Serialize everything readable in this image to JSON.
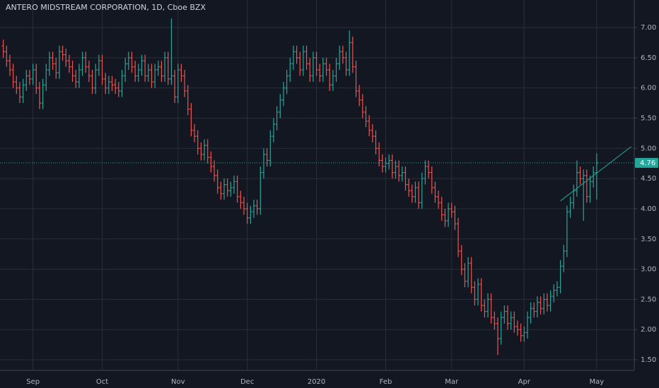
{
  "chart_data": {
    "type": "ohlc",
    "title": "ANTERO MIDSTREAM CORPORATION, 1D, Cboe BZX",
    "up_color": "#26a69a",
    "down_color": "#ef5350",
    "grid": true,
    "xlim": [
      -1,
      191.4
    ],
    "ylim": [
      1.325,
      7.456
    ],
    "yticks": [
      {
        "value": 1.5,
        "label": "1.50"
      },
      {
        "value": 2,
        "label": "2.00"
      },
      {
        "value": 2.5,
        "label": "2.50"
      },
      {
        "value": 3,
        "label": "3.00"
      },
      {
        "value": 3.5,
        "label": "3.50"
      },
      {
        "value": 4,
        "label": "4.00"
      },
      {
        "value": 4.5,
        "label": "4.50"
      },
      {
        "value": 5,
        "label": "5.00"
      },
      {
        "value": 5.5,
        "label": "5.50"
      },
      {
        "value": 6,
        "label": "6.00"
      },
      {
        "value": 6.5,
        "label": "6.50"
      },
      {
        "value": 7,
        "label": "7.00"
      }
    ],
    "xticks": [
      {
        "value": 9,
        "label": "Sep"
      },
      {
        "value": 30,
        "label": "Oct"
      },
      {
        "value": 53,
        "label": "Nov"
      },
      {
        "value": 74,
        "label": "Dec"
      },
      {
        "value": 95,
        "label": "2020"
      },
      {
        "value": 116,
        "label": "Feb"
      },
      {
        "value": 136,
        "label": "Mar"
      },
      {
        "value": 158,
        "label": "Apr"
      },
      {
        "value": 180,
        "label": "May"
      }
    ],
    "last_price": 4.76,
    "trendline": {
      "x": [
        169,
        190.5
      ],
      "y": [
        4.13,
        5.03
      ]
    },
    "ohlc": [
      [
        6.7,
        6.8,
        6.5,
        6.6
      ],
      [
        6.6,
        6.7,
        6.35,
        6.45
      ],
      [
        6.45,
        6.55,
        6.2,
        6.3
      ],
      [
        6.3,
        6.4,
        6.0,
        6.1
      ],
      [
        6.1,
        6.2,
        5.9,
        6.0
      ],
      [
        6.0,
        6.1,
        5.75,
        5.85
      ],
      [
        5.85,
        6.15,
        5.75,
        6.05
      ],
      [
        6.05,
        6.3,
        5.95,
        6.2
      ],
      [
        6.2,
        6.3,
        6.05,
        6.15
      ],
      [
        6.15,
        6.4,
        6.05,
        6.3
      ],
      [
        6.3,
        6.4,
        5.9,
        6.0
      ],
      [
        6.0,
        6.1,
        5.65,
        5.75
      ],
      [
        5.75,
        6.15,
        5.65,
        6.05
      ],
      [
        6.05,
        6.4,
        5.95,
        6.3
      ],
      [
        6.3,
        6.6,
        6.2,
        6.5
      ],
      [
        6.5,
        6.6,
        6.3,
        6.4
      ],
      [
        6.4,
        6.5,
        6.15,
        6.25
      ],
      [
        6.25,
        6.7,
        6.15,
        6.6
      ],
      [
        6.6,
        6.7,
        6.45,
        6.55
      ],
      [
        6.55,
        6.65,
        6.35,
        6.45
      ],
      [
        6.45,
        6.55,
        6.25,
        6.35
      ],
      [
        6.35,
        6.45,
        6.1,
        6.2
      ],
      [
        6.2,
        6.3,
        6.0,
        6.1
      ],
      [
        6.1,
        6.4,
        6.0,
        6.3
      ],
      [
        6.3,
        6.6,
        6.2,
        6.5
      ],
      [
        6.5,
        6.6,
        6.25,
        6.35
      ],
      [
        6.35,
        6.45,
        6.1,
        6.2
      ],
      [
        6.2,
        6.3,
        5.9,
        6.0
      ],
      [
        6.0,
        6.4,
        5.9,
        6.3
      ],
      [
        6.3,
        6.55,
        6.2,
        6.45
      ],
      [
        6.45,
        6.55,
        6.05,
        6.15
      ],
      [
        6.15,
        6.25,
        5.9,
        6.0
      ],
      [
        6.0,
        6.2,
        5.9,
        6.1
      ],
      [
        6.1,
        6.2,
        5.95,
        6.05
      ],
      [
        6.05,
        6.15,
        5.9,
        6.0
      ],
      [
        6.0,
        6.1,
        5.85,
        5.95
      ],
      [
        5.95,
        6.3,
        5.85,
        6.2
      ],
      [
        6.2,
        6.5,
        6.1,
        6.4
      ],
      [
        6.4,
        6.6,
        6.3,
        6.5
      ],
      [
        6.5,
        6.6,
        6.25,
        6.35
      ],
      [
        6.35,
        6.45,
        6.1,
        6.2
      ],
      [
        6.2,
        6.4,
        6.1,
        6.3
      ],
      [
        6.3,
        6.55,
        6.2,
        6.45
      ],
      [
        6.45,
        6.55,
        6.1,
        6.2
      ],
      [
        6.2,
        6.4,
        6.1,
        6.3
      ],
      [
        6.3,
        6.4,
        6.0,
        6.1
      ],
      [
        6.1,
        6.4,
        6.0,
        6.3
      ],
      [
        6.3,
        6.45,
        6.2,
        6.35
      ],
      [
        6.35,
        6.45,
        6.1,
        6.2
      ],
      [
        6.2,
        6.6,
        6.1,
        6.5
      ],
      [
        6.5,
        6.6,
        6.05,
        6.15
      ],
      [
        6.15,
        7.15,
        6.05,
        6.2
      ],
      [
        6.2,
        6.3,
        5.75,
        5.85
      ],
      [
        5.85,
        6.4,
        5.75,
        6.3
      ],
      [
        6.3,
        6.4,
        6.1,
        6.2
      ],
      [
        6.2,
        6.3,
        5.85,
        5.95
      ],
      [
        5.95,
        6.05,
        5.55,
        5.65
      ],
      [
        5.65,
        5.75,
        5.2,
        5.3
      ],
      [
        5.3,
        5.4,
        5.1,
        5.2
      ],
      [
        5.2,
        5.3,
        4.9,
        5.0
      ],
      [
        5.0,
        5.1,
        4.8,
        4.9
      ],
      [
        4.9,
        5.15,
        4.8,
        5.05
      ],
      [
        5.05,
        5.15,
        4.75,
        4.85
      ],
      [
        4.85,
        4.95,
        4.6,
        4.7
      ],
      [
        4.7,
        4.8,
        4.45,
        4.55
      ],
      [
        4.55,
        4.65,
        4.25,
        4.35
      ],
      [
        4.35,
        4.45,
        4.15,
        4.25
      ],
      [
        4.25,
        4.5,
        4.15,
        4.4
      ],
      [
        4.4,
        4.5,
        4.2,
        4.3
      ],
      [
        4.3,
        4.45,
        4.2,
        4.35
      ],
      [
        4.35,
        4.55,
        4.25,
        4.45
      ],
      [
        4.45,
        4.55,
        4.1,
        4.2
      ],
      [
        4.2,
        4.3,
        4.0,
        4.1
      ],
      [
        4.1,
        4.2,
        3.9,
        4.0
      ],
      [
        4.0,
        4.1,
        3.75,
        3.85
      ],
      [
        3.85,
        4.05,
        3.75,
        3.95
      ],
      [
        3.95,
        4.15,
        3.85,
        4.05
      ],
      [
        4.05,
        4.15,
        3.9,
        4.0
      ],
      [
        4.0,
        4.7,
        3.9,
        4.6
      ],
      [
        4.6,
        5.0,
        4.5,
        4.9
      ],
      [
        4.9,
        5.0,
        4.7,
        4.8
      ],
      [
        4.8,
        5.3,
        4.7,
        5.2
      ],
      [
        5.2,
        5.5,
        5.1,
        5.4
      ],
      [
        5.4,
        5.7,
        5.3,
        5.6
      ],
      [
        5.6,
        5.9,
        5.5,
        5.8
      ],
      [
        5.8,
        6.1,
        5.7,
        6.0
      ],
      [
        6.0,
        6.3,
        5.9,
        6.2
      ],
      [
        6.2,
        6.5,
        6.1,
        6.4
      ],
      [
        6.4,
        6.7,
        6.3,
        6.6
      ],
      [
        6.6,
        6.7,
        6.4,
        6.5
      ],
      [
        6.5,
        6.6,
        6.2,
        6.3
      ],
      [
        6.3,
        6.7,
        6.2,
        6.6
      ],
      [
        6.6,
        6.7,
        6.3,
        6.4
      ],
      [
        6.4,
        6.5,
        6.1,
        6.2
      ],
      [
        6.2,
        6.6,
        6.1,
        6.5
      ],
      [
        6.5,
        6.6,
        6.2,
        6.3
      ],
      [
        6.3,
        6.4,
        6.1,
        6.2
      ],
      [
        6.2,
        6.5,
        6.1,
        6.4
      ],
      [
        6.4,
        6.5,
        6.2,
        6.3
      ],
      [
        6.3,
        6.4,
        5.95,
        6.05
      ],
      [
        6.05,
        6.3,
        5.95,
        6.2
      ],
      [
        6.2,
        6.5,
        6.1,
        6.4
      ],
      [
        6.4,
        6.7,
        6.3,
        6.6
      ],
      [
        6.6,
        6.7,
        6.4,
        6.5
      ],
      [
        6.5,
        6.6,
        6.2,
        6.3
      ],
      [
        6.3,
        6.95,
        6.2,
        6.75
      ],
      [
        6.75,
        6.85,
        6.25,
        6.35
      ],
      [
        6.35,
        6.45,
        5.85,
        5.95
      ],
      [
        5.95,
        6.05,
        5.7,
        5.8
      ],
      [
        5.8,
        5.9,
        5.5,
        5.6
      ],
      [
        5.6,
        5.7,
        5.35,
        5.45
      ],
      [
        5.45,
        5.55,
        5.2,
        5.3
      ],
      [
        5.3,
        5.4,
        5.1,
        5.2
      ],
      [
        5.2,
        5.3,
        4.9,
        5.0
      ],
      [
        5.0,
        5.1,
        4.7,
        4.8
      ],
      [
        4.8,
        4.9,
        4.6,
        4.7
      ],
      [
        4.7,
        4.85,
        4.6,
        4.75
      ],
      [
        4.75,
        4.9,
        4.65,
        4.8
      ],
      [
        4.8,
        4.9,
        4.5,
        4.6
      ],
      [
        4.6,
        4.8,
        4.5,
        4.7
      ],
      [
        4.7,
        4.8,
        4.45,
        4.55
      ],
      [
        4.55,
        4.7,
        4.45,
        4.6
      ],
      [
        4.6,
        4.7,
        4.3,
        4.4
      ],
      [
        4.4,
        4.5,
        4.2,
        4.3
      ],
      [
        4.3,
        4.4,
        4.1,
        4.2
      ],
      [
        4.2,
        4.45,
        4.1,
        4.35
      ],
      [
        4.35,
        4.45,
        4.0,
        4.1
      ],
      [
        4.1,
        4.6,
        4.0,
        4.5
      ],
      [
        4.5,
        4.8,
        4.4,
        4.7
      ],
      [
        4.7,
        4.8,
        4.5,
        4.6
      ],
      [
        4.6,
        4.7,
        4.25,
        4.35
      ],
      [
        4.35,
        4.45,
        4.1,
        4.2
      ],
      [
        4.2,
        4.3,
        4.0,
        4.1
      ],
      [
        4.1,
        4.2,
        3.8,
        3.9
      ],
      [
        3.9,
        4.0,
        3.7,
        3.8
      ],
      [
        3.8,
        4.1,
        3.7,
        4.0
      ],
      [
        4.0,
        4.1,
        3.85,
        3.95
      ],
      [
        3.95,
        4.05,
        3.65,
        3.75
      ],
      [
        3.75,
        3.85,
        3.2,
        3.3
      ],
      [
        3.3,
        3.4,
        2.9,
        3.0
      ],
      [
        3.0,
        3.1,
        2.7,
        2.8
      ],
      [
        2.8,
        3.2,
        2.7,
        3.1
      ],
      [
        3.1,
        3.2,
        2.6,
        2.7
      ],
      [
        2.7,
        2.8,
        2.4,
        2.5
      ],
      [
        2.5,
        2.85,
        2.4,
        2.75
      ],
      [
        2.75,
        2.85,
        2.3,
        2.4
      ],
      [
        2.4,
        2.5,
        2.2,
        2.3
      ],
      [
        2.3,
        2.6,
        2.2,
        2.5
      ],
      [
        2.5,
        2.6,
        2.1,
        2.2
      ],
      [
        2.2,
        2.3,
        2.0,
        2.1
      ],
      [
        2.1,
        2.2,
        1.58,
        1.85
      ],
      [
        1.85,
        2.3,
        1.75,
        2.2
      ],
      [
        2.2,
        2.4,
        2.1,
        2.3
      ],
      [
        2.3,
        2.4,
        2.0,
        2.1
      ],
      [
        2.1,
        2.3,
        2.0,
        2.2
      ],
      [
        2.2,
        2.3,
        1.95,
        2.05
      ],
      [
        2.05,
        2.15,
        1.9,
        2.0
      ],
      [
        2.0,
        2.1,
        1.8,
        1.9
      ],
      [
        1.9,
        2.05,
        1.8,
        1.95
      ],
      [
        1.95,
        2.3,
        1.85,
        2.2
      ],
      [
        2.2,
        2.45,
        2.1,
        2.35
      ],
      [
        2.35,
        2.45,
        2.2,
        2.3
      ],
      [
        2.3,
        2.55,
        2.2,
        2.45
      ],
      [
        2.45,
        2.55,
        2.25,
        2.35
      ],
      [
        2.35,
        2.6,
        2.25,
        2.5
      ],
      [
        2.5,
        2.6,
        2.3,
        2.4
      ],
      [
        2.4,
        2.65,
        2.3,
        2.55
      ],
      [
        2.55,
        2.75,
        2.45,
        2.65
      ],
      [
        2.65,
        2.8,
        2.55,
        2.7
      ],
      [
        2.7,
        3.15,
        2.6,
        3.05
      ],
      [
        3.05,
        3.4,
        2.95,
        3.3
      ],
      [
        3.3,
        4.05,
        3.2,
        3.95
      ],
      [
        3.95,
        4.2,
        3.85,
        4.1
      ],
      [
        4.1,
        4.4,
        4.0,
        4.3
      ],
      [
        4.3,
        4.8,
        4.2,
        4.6
      ],
      [
        4.6,
        4.7,
        4.4,
        4.5
      ],
      [
        4.5,
        4.65,
        3.8,
        4.55
      ],
      [
        4.55,
        4.65,
        4.1,
        4.2
      ],
      [
        4.2,
        4.55,
        4.1,
        4.45
      ],
      [
        4.45,
        4.7,
        4.35,
        4.6
      ],
      [
        4.6,
        4.92,
        4.15,
        4.76
      ]
    ]
  }
}
